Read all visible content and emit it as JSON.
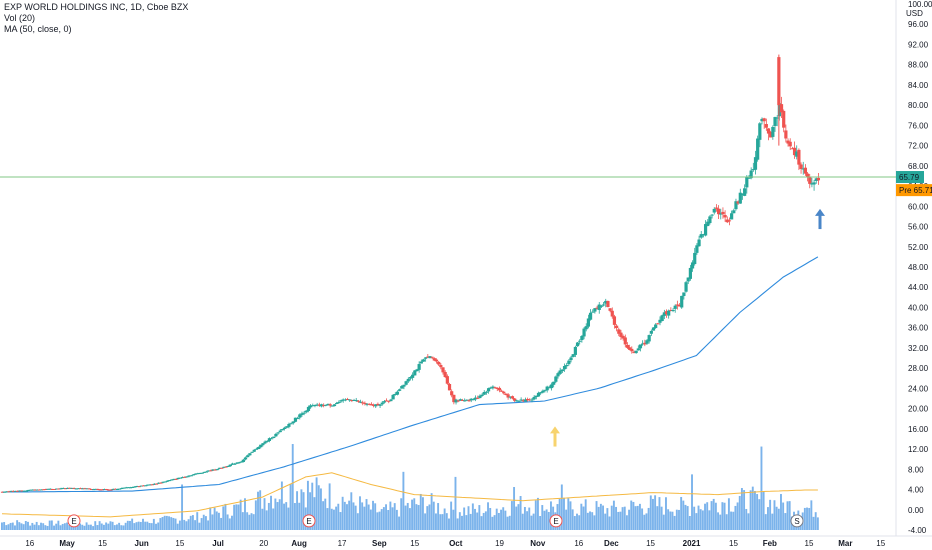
{
  "legend": {
    "title": "EXP WORLD HOLDINGS INC, 1D, Cboe BZX",
    "vol": "Vol (20)",
    "ma": "MA (50, close, 0)"
  },
  "currency": "USD",
  "price_label": "65.79",
  "pre_label": "Pre",
  "pre_value": "65.71",
  "chart_data": {
    "type": "candlestick",
    "y_range": [
      -4,
      100
    ],
    "y_ticks": [
      "100.00",
      "96.00",
      "92.00",
      "88.00",
      "84.00",
      "80.00",
      "76.00",
      "72.00",
      "68.00",
      "64.00",
      "60.00",
      "56.00",
      "52.00",
      "48.00",
      "44.00",
      "40.00",
      "36.00",
      "32.00",
      "28.00",
      "24.00",
      "20.00",
      "16.00",
      "12.00",
      "8.00",
      "4.00",
      "0.00",
      "-4.00"
    ],
    "x_ticks": [
      {
        "label": "16",
        "pos": 0.032
      },
      {
        "label": "May",
        "pos": 0.072
      },
      {
        "label": "15",
        "pos": 0.11
      },
      {
        "label": "Jun",
        "pos": 0.152
      },
      {
        "label": "15",
        "pos": 0.193
      },
      {
        "label": "Jul",
        "pos": 0.234
      },
      {
        "label": "20",
        "pos": 0.283
      },
      {
        "label": "Aug",
        "pos": 0.321
      },
      {
        "label": "17",
        "pos": 0.367
      },
      {
        "label": "Sep",
        "pos": 0.407
      },
      {
        "label": "15",
        "pos": 0.445
      },
      {
        "label": "Oct",
        "pos": 0.489
      },
      {
        "label": "19",
        "pos": 0.536
      },
      {
        "label": "Nov",
        "pos": 0.577
      },
      {
        "label": "16",
        "pos": 0.621
      },
      {
        "label": "Dec",
        "pos": 0.656
      },
      {
        "label": "15",
        "pos": 0.698
      },
      {
        "label": "2021",
        "pos": 0.742
      },
      {
        "label": "15",
        "pos": 0.787
      },
      {
        "label": "Feb",
        "pos": 0.826
      },
      {
        "label": "15",
        "pos": 0.868
      },
      {
        "label": "Mar",
        "pos": 0.907
      },
      {
        "label": "15",
        "pos": 0.945
      }
    ],
    "price_anchors": [
      [
        0,
        3.6
      ],
      [
        30,
        4.3
      ],
      [
        50,
        4.0
      ],
      [
        70,
        5.1
      ],
      [
        90,
        7.2
      ],
      [
        100,
        8.2
      ],
      [
        110,
        9.6
      ],
      [
        118,
        12.5
      ],
      [
        128,
        15.5
      ],
      [
        142,
        20.5
      ],
      [
        152,
        20.8
      ],
      [
        160,
        22.0
      ],
      [
        170,
        20.5
      ],
      [
        178,
        21.5
      ],
      [
        188,
        26.5
      ],
      [
        196,
        30.5
      ],
      [
        202,
        28.5
      ],
      [
        208,
        21.5
      ],
      [
        218,
        22.0
      ],
      [
        226,
        24.5
      ],
      [
        236,
        21.5
      ],
      [
        244,
        22.0
      ],
      [
        252,
        24.5
      ],
      [
        262,
        30.0
      ],
      [
        272,
        39.5
      ],
      [
        278,
        41.0
      ],
      [
        284,
        35.0
      ],
      [
        290,
        31.0
      ],
      [
        296,
        33.0
      ],
      [
        304,
        38.5
      ],
      [
        312,
        40.5
      ],
      [
        320,
        52.0
      ],
      [
        328,
        60.0
      ],
      [
        334,
        57.0
      ],
      [
        340,
        62.0
      ],
      [
        346,
        68.0
      ],
      [
        350,
        78.0
      ],
      [
        354,
        74.0
      ],
      [
        358,
        80.0
      ],
      [
        362,
        72.0
      ],
      [
        366,
        70.0
      ],
      [
        372,
        64.0
      ],
      [
        376,
        65.8
      ]
    ],
    "volume_anchors": [
      [
        0,
        1.5
      ],
      [
        40,
        1.2
      ],
      [
        70,
        1.8
      ],
      [
        90,
        2.5
      ],
      [
        110,
        4.5
      ],
      [
        125,
        7.0
      ],
      [
        135,
        8.5
      ],
      [
        150,
        7.0
      ],
      [
        175,
        3.5
      ],
      [
        195,
        5.5
      ],
      [
        205,
        4.0
      ],
      [
        220,
        3.8
      ],
      [
        240,
        5.0
      ],
      [
        260,
        4.5
      ],
      [
        280,
        4.0
      ],
      [
        300,
        5.0
      ],
      [
        315,
        4.5
      ],
      [
        330,
        5.5
      ],
      [
        345,
        6.0
      ],
      [
        360,
        5.0
      ],
      [
        376,
        4.0
      ]
    ],
    "ma_anchors": [
      [
        0,
        3.5
      ],
      [
        60,
        3.7
      ],
      [
        100,
        5.0
      ],
      [
        130,
        8.5
      ],
      [
        160,
        12.5
      ],
      [
        190,
        16.8
      ],
      [
        220,
        20.8
      ],
      [
        250,
        21.5
      ],
      [
        275,
        24.0
      ],
      [
        300,
        27.5
      ],
      [
        320,
        30.5
      ],
      [
        340,
        39.0
      ],
      [
        360,
        46.0
      ],
      [
        376,
        50.0
      ]
    ],
    "vol_ma_anchors": [
      [
        0,
        -0.8
      ],
      [
        50,
        -1.4
      ],
      [
        90,
        -0.2
      ],
      [
        120,
        2.5
      ],
      [
        140,
        6.5
      ],
      [
        152,
        7.3
      ],
      [
        170,
        5.0
      ],
      [
        190,
        3.0
      ],
      [
        210,
        2.5
      ],
      [
        240,
        1.8
      ],
      [
        270,
        2.6
      ],
      [
        300,
        3.4
      ],
      [
        330,
        3.0
      ],
      [
        350,
        3.6
      ],
      [
        370,
        3.9
      ],
      [
        376,
        3.9
      ]
    ],
    "volume_spikes": [
      [
        83,
        9.0
      ],
      [
        134,
        17.0
      ],
      [
        185,
        11.5
      ],
      [
        209,
        10.5
      ],
      [
        236,
        8.5
      ],
      [
        258,
        9.0
      ],
      [
        318,
        11.0
      ],
      [
        350,
        16.5
      ]
    ],
    "colors": {
      "up": "#26a69a",
      "down": "#ef5350",
      "volume": "#64a6e8",
      "ma": "#2f8bdd",
      "vol_ma": "#f5b942",
      "price_line": "#81c784"
    },
    "earnings_markers": [
      "E",
      "E",
      "E",
      "S"
    ]
  }
}
